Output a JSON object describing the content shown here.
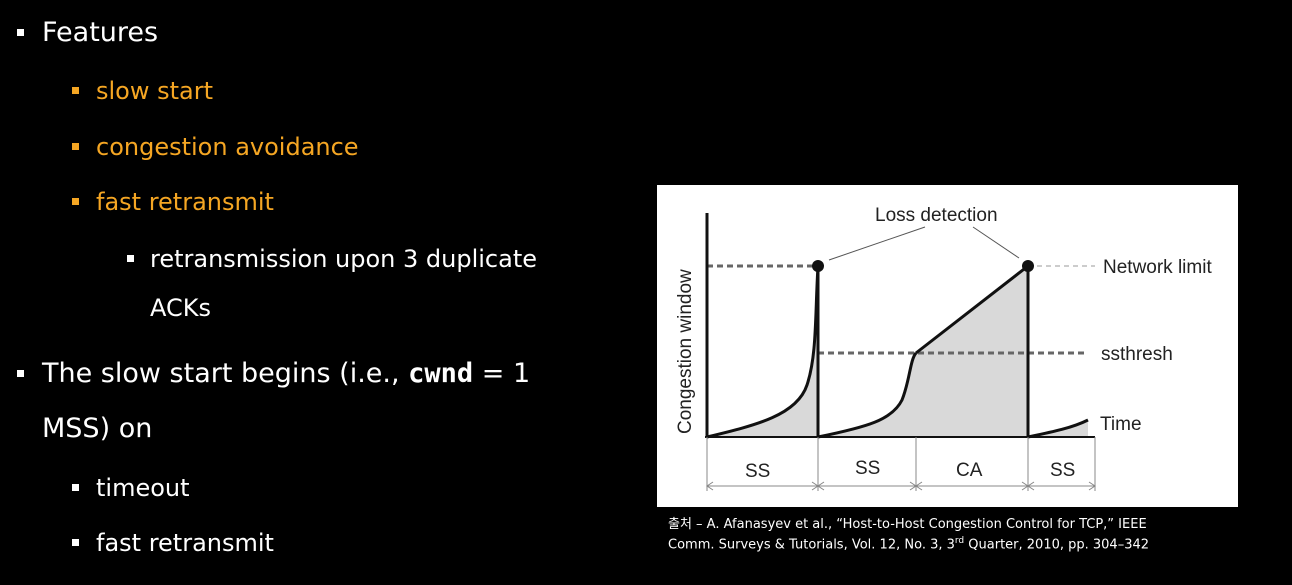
{
  "slide": {
    "features_heading": "Features",
    "items": {
      "slow_start": "slow start",
      "congestion_avoidance": "congestion avoidance",
      "fast_retransmit": "fast retransmit",
      "retransmission_line1": "retransmission upon 3 duplicate",
      "retransmission_line2": "ACKs"
    },
    "slow_start_begins": {
      "prefix": "The slow start begins (i.e., ",
      "code": "cwnd",
      "suffix": " = 1",
      "line2": "MSS) on"
    },
    "triggers": {
      "timeout": "timeout",
      "fast_retransmit": "fast retransmit"
    }
  },
  "diagram": {
    "y_axis_label": "Congestion window",
    "loss_detection_label": "Loss detection",
    "network_limit_label": "Network limit",
    "ssthresh_label": "ssthresh",
    "time_label": "Time",
    "phases": [
      "SS",
      "SS",
      "CA",
      "SS"
    ]
  },
  "citation": {
    "line1": "출처 – A. Afanasyev et al., “Host-to-Host Congestion Control for TCP,” IEEE",
    "line2_prefix": "Comm. Surveys & Tutorials, Vol. 12, No. 3, 3",
    "line2_sup": "rd",
    "line2_suffix": " Quarter, 2010, pp. 304–342"
  },
  "colors": {
    "background": "#000000",
    "accent_orange": "#f5a623",
    "text_white": "#ffffff"
  }
}
